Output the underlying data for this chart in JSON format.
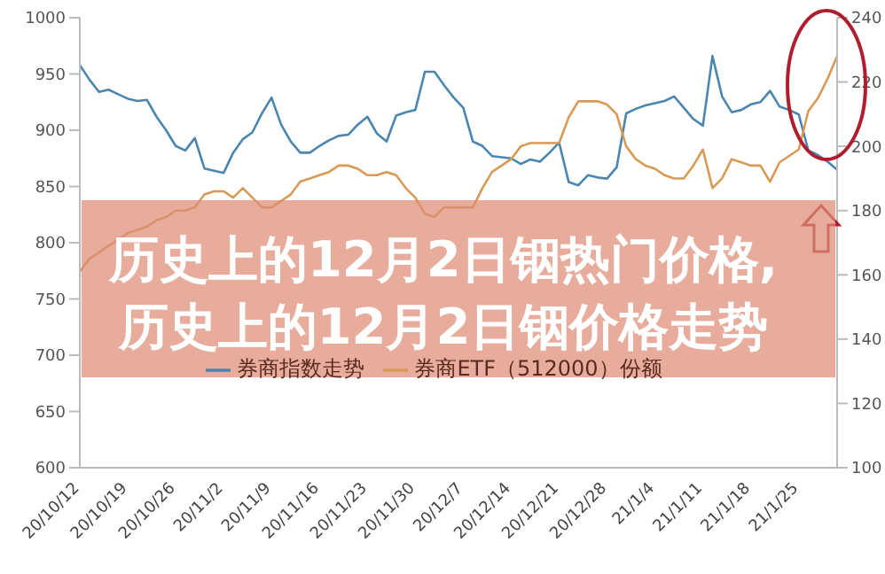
{
  "chart_data": {
    "type": "line",
    "title": "历史上的12月2日铟热门价格,历史上的12月2日铟价格走势",
    "categories": [
      "20/10/12",
      null,
      null,
      null,
      null,
      "20/10/19",
      null,
      null,
      null,
      null,
      "20/10/26",
      null,
      null,
      null,
      null,
      "20/11/2",
      null,
      null,
      null,
      null,
      "20/11/9",
      null,
      null,
      null,
      null,
      "20/11/16",
      null,
      null,
      null,
      null,
      "20/11/23",
      null,
      null,
      null,
      null,
      "20/11/30",
      null,
      null,
      null,
      null,
      "20/12/7",
      null,
      null,
      null,
      null,
      "20/12/14",
      null,
      null,
      null,
      null,
      "20/12/21",
      null,
      null,
      null,
      null,
      "20/12/28",
      null,
      null,
      null,
      null,
      "21/1/4",
      null,
      null,
      null,
      null,
      "21/1/11",
      null,
      null,
      null,
      null,
      "21/1/18",
      null,
      null,
      null,
      null,
      "21/1/25",
      null,
      null,
      null,
      null
    ],
    "series": [
      {
        "name": "券商指数走势",
        "color": "#4a86b0",
        "values": [
          958,
          945,
          934,
          936,
          932,
          928,
          926,
          927,
          912,
          900,
          886,
          882,
          893,
          866,
          864,
          862,
          880,
          892,
          898,
          915,
          929,
          905,
          890,
          880,
          880,
          886,
          891,
          895,
          896,
          905,
          912,
          897,
          890,
          913,
          916,
          918,
          952,
          952,
          940,
          929,
          920,
          890,
          886,
          877,
          876,
          875,
          870,
          874,
          872,
          880,
          889,
          854,
          851,
          860,
          858,
          857,
          867,
          915,
          919,
          922,
          924,
          926,
          930,
          920,
          910,
          904,
          966,
          930,
          916,
          918,
          923,
          925,
          935,
          921,
          918,
          914,
          882,
          878,
          872,
          865
        ]
      },
      {
        "name": "券商ETF（512000）份额",
        "color": "#d99a55",
        "axis": "y2",
        "values": [
          161,
          165,
          167,
          169,
          171,
          173,
          174,
          175,
          177,
          178,
          180,
          180,
          181,
          185,
          186,
          186,
          184,
          187,
          184,
          181,
          181,
          183,
          185,
          189,
          190,
          191,
          192,
          194,
          194,
          193,
          191,
          191,
          192,
          191,
          187,
          184,
          179,
          178,
          181,
          181,
          181,
          181,
          187,
          192,
          194,
          196,
          200,
          201,
          201,
          201,
          201,
          209,
          214,
          214,
          214,
          213,
          210,
          200,
          196,
          194,
          193,
          191,
          190,
          190,
          194,
          199,
          187,
          190,
          196,
          195,
          194,
          194,
          189,
          195,
          197,
          199,
          211,
          215,
          221,
          228
        ]
      }
    ],
    "ylim": [
      600,
      1000
    ],
    "yticks": [
      600,
      650,
      700,
      750,
      800,
      850,
      900,
      950,
      1000
    ],
    "y2lim": [
      100,
      240
    ],
    "y2ticks": [
      100,
      120,
      140,
      160,
      180,
      200,
      220,
      240
    ],
    "legend": "bottom",
    "grid": false,
    "marker": "none",
    "line_style": "solid"
  }
}
